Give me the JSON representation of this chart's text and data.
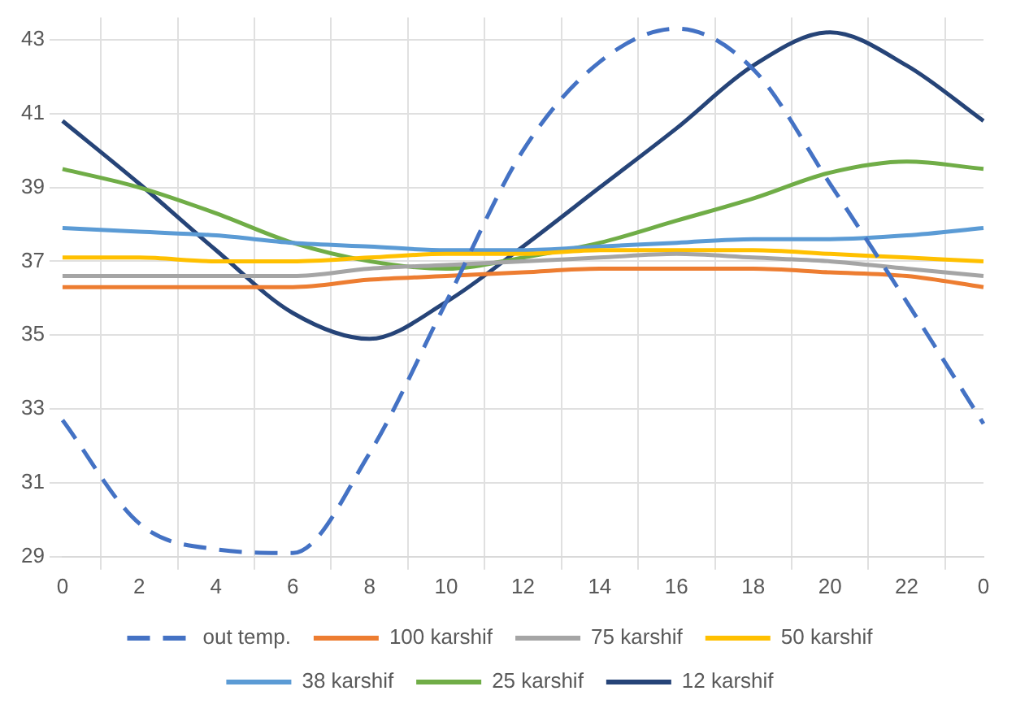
{
  "chart_data": {
    "type": "line",
    "categories": [
      "0",
      "2",
      "4",
      "6",
      "8",
      "10",
      "12",
      "14",
      "16",
      "18",
      "20",
      "22",
      "0"
    ],
    "series": [
      {
        "name": "out temp.",
        "color": "#4472c4",
        "line_style": "dashed",
        "values": [
          32.7,
          29.9,
          29.2,
          29.1,
          31.8,
          35.9,
          40.0,
          42.4,
          43.3,
          42.2,
          39.1,
          35.9,
          32.6
        ]
      },
      {
        "name": "100 karshif",
        "color": "#ed7d31",
        "values": [
          36.3,
          36.3,
          36.3,
          36.3,
          36.5,
          36.6,
          36.7,
          36.8,
          36.8,
          36.8,
          36.7,
          36.6,
          36.3
        ]
      },
      {
        "name": "75 karshif",
        "color": "#a5a5a5",
        "values": [
          36.6,
          36.6,
          36.6,
          36.6,
          36.8,
          36.9,
          37.0,
          37.1,
          37.2,
          37.1,
          37.0,
          36.8,
          36.6
        ]
      },
      {
        "name": "50 karshif",
        "color": "#ffc000",
        "values": [
          37.1,
          37.1,
          37.0,
          37.0,
          37.1,
          37.2,
          37.2,
          37.3,
          37.3,
          37.3,
          37.2,
          37.1,
          37.0
        ]
      },
      {
        "name": "38 karshif",
        "color": "#5b9bd5",
        "values": [
          37.9,
          37.8,
          37.7,
          37.5,
          37.4,
          37.3,
          37.3,
          37.4,
          37.5,
          37.6,
          37.6,
          37.7,
          37.9
        ]
      },
      {
        "name": "25 karshif",
        "color": "#70ad47",
        "values": [
          39.5,
          39.0,
          38.3,
          37.5,
          37.0,
          36.8,
          37.1,
          37.5,
          38.1,
          38.7,
          39.4,
          39.7,
          39.5
        ]
      },
      {
        "name": "12 karshif",
        "color": "#264478",
        "values": [
          40.8,
          39.1,
          37.3,
          35.6,
          34.9,
          35.9,
          37.4,
          39.0,
          40.6,
          42.3,
          43.2,
          42.3,
          40.8
        ]
      }
    ],
    "ylim": [
      29,
      43.6
    ],
    "yticks": [
      29,
      31,
      33,
      35,
      37,
      39,
      41,
      43
    ],
    "grid": true,
    "legend": "bottom",
    "marker": "none",
    "line_style": "solid"
  }
}
